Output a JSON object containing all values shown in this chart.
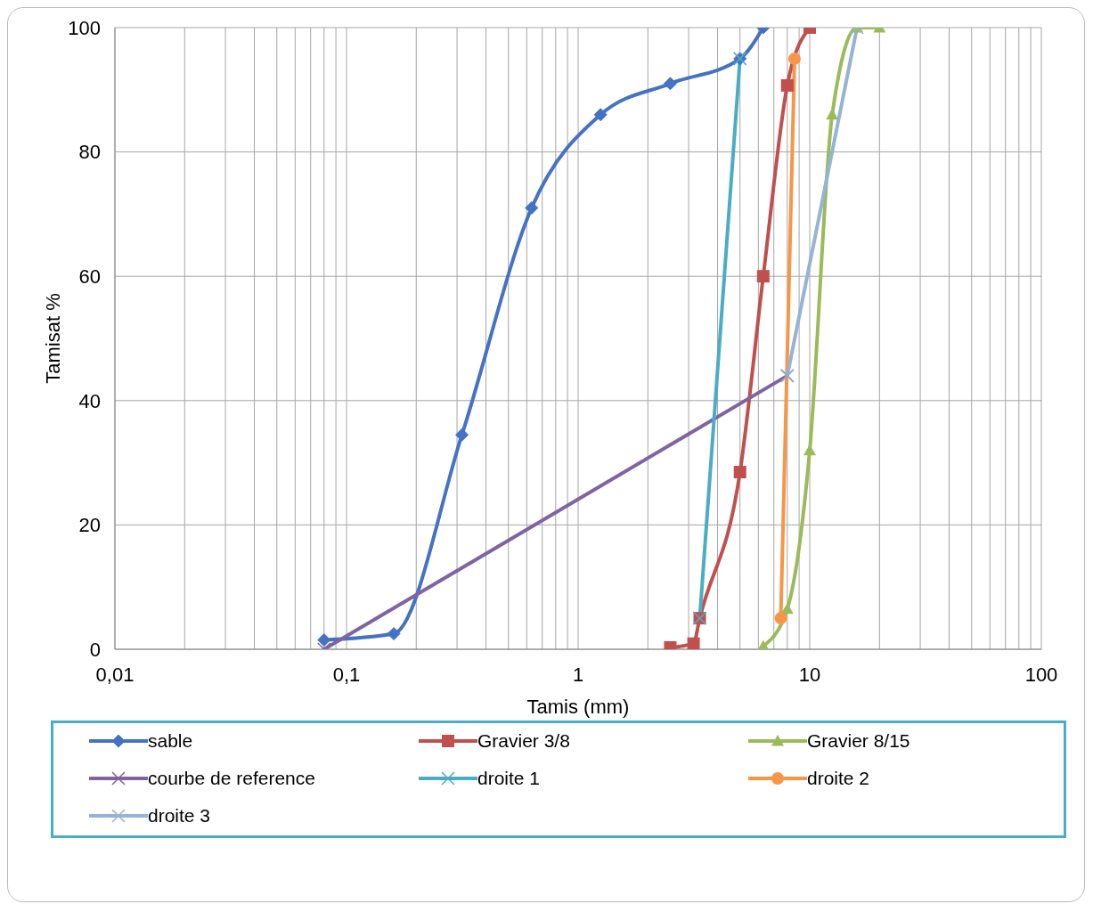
{
  "chart_data": {
    "type": "line",
    "xlabel": "Tamis (mm)",
    "ylabel": "Tamisat  %",
    "log": "x",
    "grid": true,
    "legend": "bottom",
    "xlim": [
      0.01,
      100
    ],
    "xticks": [
      {
        "value": 0.01,
        "label": "0,01"
      },
      {
        "value": 0.02,
        "label": null
      },
      {
        "value": 0.03,
        "label": null
      },
      {
        "value": 0.04,
        "label": null
      },
      {
        "value": 0.05,
        "label": null
      },
      {
        "value": 0.06,
        "label": null
      },
      {
        "value": 0.07,
        "label": null
      },
      {
        "value": 0.08,
        "label": null
      },
      {
        "value": 0.09,
        "label": null
      },
      {
        "value": 0.1,
        "label": "0,1"
      },
      {
        "value": 0.2,
        "label": null
      },
      {
        "value": 0.3,
        "label": null
      },
      {
        "value": 0.4,
        "label": null
      },
      {
        "value": 0.5,
        "label": null
      },
      {
        "value": 0.6,
        "label": null
      },
      {
        "value": 0.7,
        "label": null
      },
      {
        "value": 0.8,
        "label": null
      },
      {
        "value": 0.9,
        "label": null
      },
      {
        "value": 1,
        "label": "1"
      },
      {
        "value": 2,
        "label": null
      },
      {
        "value": 3,
        "label": null
      },
      {
        "value": 4,
        "label": null
      },
      {
        "value": 5,
        "label": null
      },
      {
        "value": 6,
        "label": null
      },
      {
        "value": 7,
        "label": null
      },
      {
        "value": 8,
        "label": null
      },
      {
        "value": 9,
        "label": null
      },
      {
        "value": 10,
        "label": "10"
      },
      {
        "value": 20,
        "label": null
      },
      {
        "value": 30,
        "label": null
      },
      {
        "value": 40,
        "label": null
      },
      {
        "value": 50,
        "label": null
      },
      {
        "value": 60,
        "label": null
      },
      {
        "value": 70,
        "label": null
      },
      {
        "value": 80,
        "label": null
      },
      {
        "value": 90,
        "label": null
      },
      {
        "value": 100,
        "label": "100"
      }
    ],
    "ylim": [
      0,
      100
    ],
    "yticks": [
      0,
      20,
      40,
      60,
      80,
      100
    ],
    "series": [
      {
        "name": "sable",
        "color": "#4472c4",
        "marker": "diamond",
        "x": [
          0.08,
          0.16,
          0.315,
          0.63,
          1.25,
          2.5,
          5,
          6.3
        ],
        "values": [
          1.5,
          2.5,
          34.5,
          71,
          86,
          91,
          95,
          100
        ]
      },
      {
        "name": "Gravier 3/8",
        "color": "#c0504d",
        "marker": "square",
        "x": [
          2.5,
          3.15,
          3.35,
          5,
          6.3,
          8,
          10
        ],
        "values": [
          0.3,
          0.9,
          5,
          28.5,
          60,
          90.7,
          100
        ]
      },
      {
        "name": "Gravier 8/15",
        "color": "#9bbb59",
        "marker": "triangle",
        "x": [
          6.3,
          8,
          10,
          12.5,
          16,
          20
        ],
        "values": [
          0.5,
          6.5,
          32,
          86,
          100,
          100
        ]
      },
      {
        "name": "courbe de reference",
        "color": "#8064a2",
        "marker": "cross",
        "x": [
          0.08,
          8
        ],
        "values": [
          0,
          44
        ]
      },
      {
        "name": "droite 1",
        "color": "#4bacc6",
        "marker": "cross",
        "x": [
          3.35,
          5
        ],
        "values": [
          5,
          95
        ]
      },
      {
        "name": "droite 2",
        "color": "#f79646",
        "marker": "circle",
        "x": [
          7.5,
          8.6
        ],
        "values": [
          5,
          95
        ]
      },
      {
        "name": "droite 3",
        "color": "#95b3d7",
        "marker": "cross",
        "x": [
          8,
          16
        ],
        "values": [
          44,
          100
        ]
      }
    ]
  }
}
